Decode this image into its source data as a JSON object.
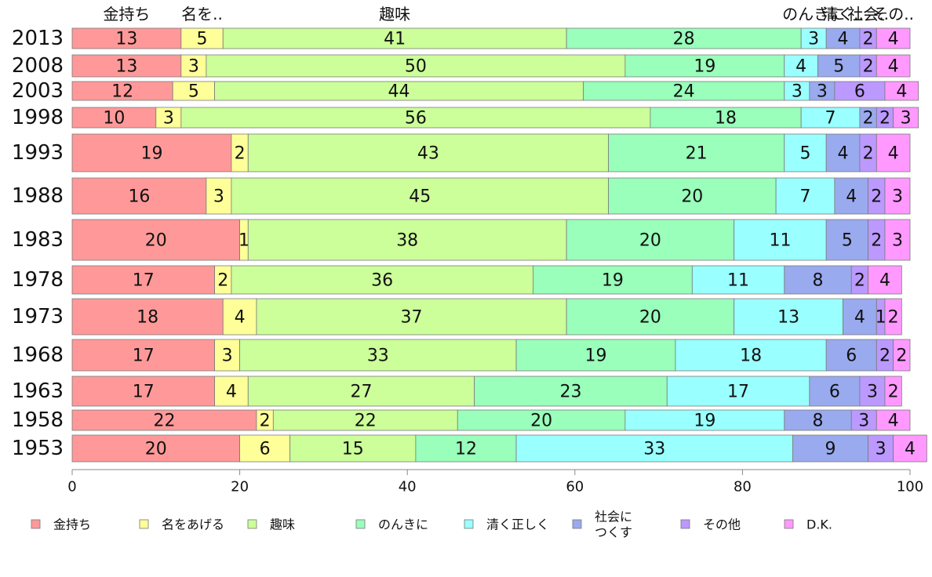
{
  "chart_data": {
    "type": "bar",
    "orientation": "horizontal",
    "stacked": true,
    "xlim": [
      0,
      100
    ],
    "xticks": [
      "0",
      "20",
      "40",
      "60",
      "80",
      "100"
    ],
    "categories": [
      "2013",
      "2008",
      "2003",
      "1998",
      "1993",
      "1988",
      "1983",
      "1978",
      "1973",
      "1968",
      "1963",
      "1958",
      "1953"
    ],
    "top_labels": [
      "金持ち",
      "名を..",
      "趣味",
      "",
      "のんきに",
      "清く..",
      "社会..",
      "その..",
      "D..."
    ],
    "series": [
      {
        "name": "金持ち",
        "legend": [
          "金持ち"
        ],
        "color": "#ff9999",
        "values": [
          13,
          13,
          12,
          10,
          19,
          16,
          20,
          17,
          18,
          17,
          17,
          22,
          20
        ]
      },
      {
        "name": "名をあげる",
        "legend": [
          "名をあげる"
        ],
        "color": "#ffff99",
        "values": [
          5,
          3,
          5,
          3,
          2,
          3,
          1,
          2,
          4,
          3,
          4,
          2,
          6
        ]
      },
      {
        "name": "趣味",
        "legend": [
          "趣味"
        ],
        "color": "#ccff99",
        "values": [
          41,
          50,
          44,
          56,
          43,
          45,
          38,
          36,
          37,
          33,
          27,
          22,
          15
        ]
      },
      {
        "name": "のんきに",
        "legend": [
          "のんきに"
        ],
        "color": "#99ffbb",
        "values": [
          28,
          19,
          24,
          18,
          21,
          20,
          20,
          19,
          20,
          19,
          23,
          20,
          12
        ]
      },
      {
        "name": "清く正しく",
        "legend": [
          "清く正しく"
        ],
        "color": "#99ffff",
        "values": [
          3,
          4,
          3,
          7,
          5,
          7,
          11,
          11,
          13,
          18,
          17,
          19,
          33
        ]
      },
      {
        "name": "社会につくす",
        "legend": [
          "社会に",
          "つくす"
        ],
        "color": "#99aaee",
        "values": [
          4,
          5,
          3,
          2,
          4,
          4,
          5,
          8,
          4,
          6,
          6,
          8,
          9
        ]
      },
      {
        "name": "その他",
        "legend": [
          "その他"
        ],
        "color": "#bb99ff",
        "values": [
          2,
          2,
          6,
          2,
          2,
          2,
          2,
          2,
          1,
          2,
          3,
          3,
          3
        ]
      },
      {
        "name": "D.K.",
        "legend": [
          "D.K."
        ],
        "color": "#ff99ff",
        "values": [
          4,
          4,
          4,
          3,
          4,
          3,
          3,
          4,
          2,
          2,
          2,
          4,
          4
        ]
      }
    ]
  }
}
